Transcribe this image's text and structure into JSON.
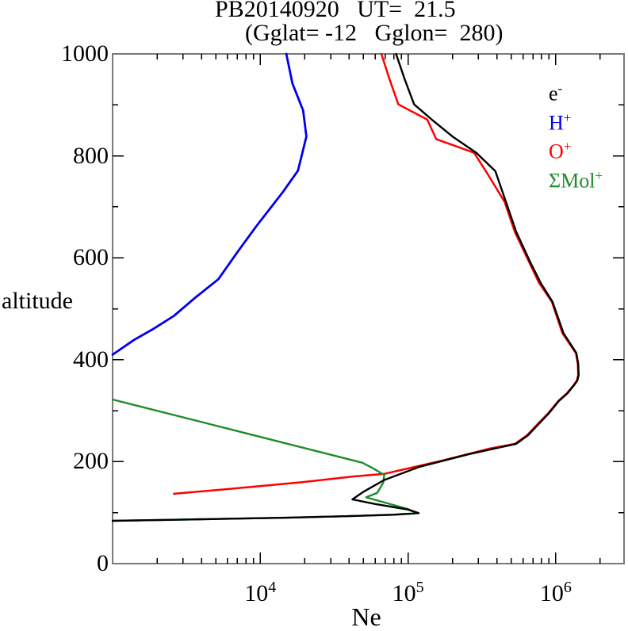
{
  "chart": {
    "title": "PB20140920   UT=  21.5",
    "subtitle": "(Gglat= -12   Gglon=  280)",
    "xlabel": "Ne",
    "ylabel": "altitude"
  },
  "colors": {
    "background": "#ffffff",
    "frame": "#7a7a7a",
    "tick": "#000000",
    "electron": "#000000",
    "h_plus": "#0000ee",
    "o_plus": "#ff0000",
    "mol_plus": "#1e8c28"
  },
  "chart_data": {
    "type": "line",
    "title": "PB20140920   UT=  21.5",
    "subtitle": "(Gglat= -12   Gglon=  280)",
    "xlabel": "Ne",
    "ylabel": "altitude",
    "x_scale": "log",
    "x_range": [
      1000,
      2900000
    ],
    "y_range": [
      0,
      1000
    ],
    "grid": false,
    "legend_position": "top-right-inside",
    "x_major_ticks": [
      {
        "base": "10",
        "exp": "4",
        "value": 10000
      },
      {
        "base": "10",
        "exp": "5",
        "value": 100000
      },
      {
        "base": "10",
        "exp": "6",
        "value": 1000000
      }
    ],
    "x_minor_multiples": [
      2,
      3,
      4,
      5,
      6,
      7,
      8,
      9
    ],
    "y_ticks": [
      {
        "label": "0",
        "value": 0
      },
      {
        "label": "200",
        "value": 200
      },
      {
        "label": "400",
        "value": 400
      },
      {
        "label": "600",
        "value": 600
      },
      {
        "label": "800",
        "value": 800
      },
      {
        "label": "1000",
        "value": 1000
      }
    ],
    "y_minor_step": 100,
    "series": [
      {
        "name": "electron",
        "label_base": "e",
        "label_sup": "-",
        "color": "#000000",
        "width": 2.4,
        "points": [
          [
            1000,
            84
          ],
          [
            2600,
            86
          ],
          [
            5900,
            88
          ],
          [
            15000,
            90
          ],
          [
            38000,
            93
          ],
          [
            80000,
            96
          ],
          [
            118000,
            99
          ],
          [
            100000,
            106
          ],
          [
            60000,
            117
          ],
          [
            42000,
            126
          ],
          [
            50000,
            141
          ],
          [
            69000,
            164
          ],
          [
            120000,
            190
          ],
          [
            260000,
            215
          ],
          [
            540000,
            235
          ],
          [
            650000,
            252
          ],
          [
            760000,
            273
          ],
          [
            900000,
            295
          ],
          [
            1050000,
            319
          ],
          [
            1200000,
            334
          ],
          [
            1330000,
            350
          ],
          [
            1400000,
            359
          ],
          [
            1430000,
            370
          ],
          [
            1420000,
            392
          ],
          [
            1380000,
            413
          ],
          [
            1130000,
            452
          ],
          [
            950000,
            514
          ],
          [
            790000,
            551
          ],
          [
            670000,
            592
          ],
          [
            540000,
            651
          ],
          [
            460000,
            710
          ],
          [
            390000,
            770
          ],
          [
            290000,
            806
          ],
          [
            200000,
            838
          ],
          [
            145000,
            871
          ],
          [
            110000,
            901
          ],
          [
            95000,
            950
          ],
          [
            83000,
            1000
          ]
        ]
      },
      {
        "name": "h-plus",
        "label_base": "H",
        "label_sup": "+",
        "color": "#0000ee",
        "width": 2.8,
        "points": [
          [
            1000,
            410
          ],
          [
            1400,
            439
          ],
          [
            1900,
            461
          ],
          [
            2600,
            486
          ],
          [
            3600,
            521
          ],
          [
            5200,
            558
          ],
          [
            7000,
            611
          ],
          [
            9400,
            662
          ],
          [
            14200,
            729
          ],
          [
            18000,
            771
          ],
          [
            20500,
            838
          ],
          [
            19500,
            889
          ],
          [
            16500,
            942
          ],
          [
            15000,
            1000
          ]
        ]
      },
      {
        "name": "o-plus",
        "label_base": "O",
        "label_sup": "+",
        "color": "#ff0000",
        "width": 2.5,
        "points": [
          [
            2600,
            137
          ],
          [
            5900,
            146
          ],
          [
            18000,
            159
          ],
          [
            43000,
            171
          ],
          [
            69000,
            176
          ],
          [
            170000,
            202
          ],
          [
            360000,
            226
          ],
          [
            530000,
            235
          ],
          [
            640000,
            252
          ],
          [
            750000,
            273
          ],
          [
            890000,
            295
          ],
          [
            1040000,
            319
          ],
          [
            1190000,
            334
          ],
          [
            1320000,
            350
          ],
          [
            1390000,
            359
          ],
          [
            1420000,
            370
          ],
          [
            1410000,
            392
          ],
          [
            1370000,
            413
          ],
          [
            1110000,
            452
          ],
          [
            940000,
            514
          ],
          [
            770000,
            551
          ],
          [
            660000,
            592
          ],
          [
            530000,
            650
          ],
          [
            450000,
            710
          ],
          [
            350000,
            762
          ],
          [
            280000,
            806
          ],
          [
            155000,
            833
          ],
          [
            135000,
            871
          ],
          [
            86000,
            901
          ],
          [
            75000,
            950
          ],
          [
            66000,
            1000
          ]
        ]
      },
      {
        "name": "mol-plus",
        "label_base": "ΣMol",
        "label_sup": "+",
        "color": "#1e8c28",
        "width": 2.4,
        "points": [
          [
            1000,
            322
          ],
          [
            7000,
            260
          ],
          [
            49000,
            198
          ],
          [
            58000,
            187
          ],
          [
            69000,
            174
          ],
          [
            68000,
            159
          ],
          [
            62000,
            139
          ],
          [
            52000,
            130
          ],
          [
            100000,
            107
          ],
          [
            115000,
            99
          ],
          [
            80000,
            96
          ],
          [
            38000,
            93
          ],
          [
            15000,
            90
          ],
          [
            5900,
            88
          ],
          [
            2600,
            86
          ],
          [
            1000,
            84
          ]
        ]
      }
    ],
    "draw_order": [
      1,
      2,
      3,
      0
    ]
  }
}
